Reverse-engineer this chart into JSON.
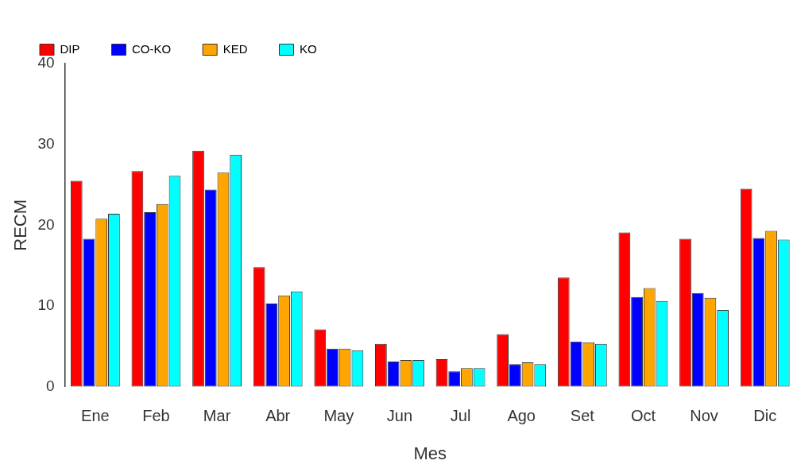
{
  "chart_data": {
    "type": "bar",
    "xlabel": "Mes",
    "ylabel": "RECM",
    "categories": [
      "Ene",
      "Feb",
      "Mar",
      "Abr",
      "May",
      "Jun",
      "Jul",
      "Ago",
      "Set",
      "Oct",
      "Nov",
      "Dic"
    ],
    "series": [
      {
        "name": "DIP",
        "color": "#ff0000",
        "values": [
          25.5,
          26.7,
          29.2,
          14.8,
          7.1,
          5.3,
          3.4,
          6.5,
          13.5,
          19.1,
          18.3,
          24.5
        ]
      },
      {
        "name": "CO-KO",
        "color": "#0000ff",
        "values": [
          18.3,
          21.6,
          24.4,
          10.3,
          4.7,
          3.1,
          1.9,
          2.8,
          5.6,
          11.1,
          11.6,
          18.4
        ]
      },
      {
        "name": "KED",
        "color": "#ffa500",
        "values": [
          20.8,
          22.6,
          26.5,
          11.3,
          4.7,
          3.3,
          2.3,
          3.0,
          5.5,
          12.2,
          11.0,
          19.3
        ]
      },
      {
        "name": "KO",
        "color": "#00ffff",
        "values": [
          21.4,
          26.1,
          28.7,
          11.8,
          4.5,
          3.3,
          2.3,
          2.8,
          5.3,
          10.6,
          9.5,
          18.2
        ]
      }
    ],
    "ylim": [
      0,
      40
    ],
    "yticks": [
      0,
      10,
      20,
      30,
      40
    ],
    "grid": false,
    "legend": "top left"
  }
}
